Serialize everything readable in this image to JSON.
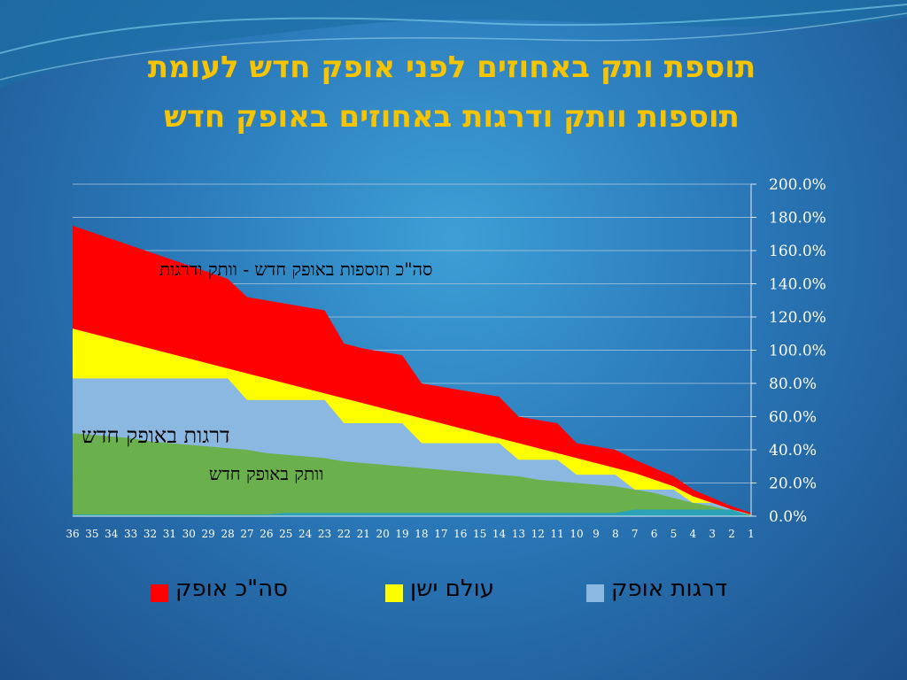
{
  "title_line1": "תוספת ותק באחוזים לפני אופק חדש  לעומת",
  "title_line2": "תוספות וותק ודרגות באחוזים באופק חדש",
  "annotations": {
    "total_label": "סה\"כ תוספות באופק חדש - וותק ודרגות",
    "ranks_label": "דרגות באופק חדש",
    "seniority_label": "וותק באופק חדש"
  },
  "legend": {
    "total": "סה\"כ אופק",
    "old_world": "עולם ישן",
    "ranks": "דרגות אופק"
  },
  "colors": {
    "red": "#ff0000",
    "yellow": "#ffff00",
    "lightblue": "#8bb8e0",
    "green": "#6ab04c",
    "teal": "#2aa3b8",
    "title": "#f6c400"
  },
  "chart_data": {
    "type": "area",
    "x_ticks": [
      "36",
      "35",
      "34",
      "33",
      "32",
      "31",
      "30",
      "29",
      "28",
      "27",
      "26",
      "25",
      "24",
      "23",
      "22",
      "21",
      "20",
      "19",
      "18",
      "17",
      "16",
      "15",
      "14",
      "13",
      "12",
      "11",
      "10",
      "9",
      "8",
      "7",
      "6",
      "5",
      "4",
      "3",
      "2",
      "1"
    ],
    "y_ticks": [
      "200.0%",
      "180.0%",
      "160.0%",
      "140.0%",
      "120.0%",
      "100.0%",
      "80.0%",
      "60.0%",
      "40.0%",
      "20.0%",
      "0.0%"
    ],
    "ylim": [
      0,
      200
    ],
    "grid": true,
    "series": [
      {
        "name": "סה\"כ אופק",
        "color": "#ff0000",
        "values": [
          175,
          171,
          167,
          163,
          159,
          155,
          151,
          147,
          143,
          132,
          130,
          128,
          126,
          124,
          104,
          101,
          99,
          97,
          80,
          78,
          76,
          74,
          72,
          60,
          58,
          56,
          44,
          42,
          40,
          34,
          29,
          24,
          16,
          11,
          6,
          2
        ]
      },
      {
        "name": "עולם ישן",
        "color": "#ffff00",
        "values": [
          113,
          110,
          107,
          104,
          101,
          98,
          95,
          92,
          89,
          86,
          83,
          80,
          77,
          74,
          71,
          68,
          65,
          62,
          59,
          56,
          53,
          50,
          47,
          44,
          41,
          38,
          35,
          32,
          29,
          26,
          22,
          18,
          12,
          8,
          4,
          1
        ]
      },
      {
        "name": "דרגות אופק",
        "color": "#8bb8e0",
        "values": [
          83,
          83,
          83,
          83,
          83,
          83,
          83,
          83,
          83,
          70,
          70,
          70,
          70,
          70,
          56,
          56,
          56,
          56,
          44,
          44,
          44,
          44,
          44,
          34,
          34,
          34,
          25,
          25,
          25,
          16,
          16,
          16,
          8,
          8,
          4,
          1
        ]
      },
      {
        "color": "#6ab04c",
        "values": [
          50,
          49,
          48,
          47,
          45,
          44,
          43,
          42,
          41,
          40,
          38,
          37,
          36,
          35,
          33,
          32,
          31,
          30,
          29,
          28,
          27,
          26,
          25,
          24,
          22,
          21,
          20,
          19,
          18,
          16,
          14,
          11,
          8,
          6,
          3,
          1
        ]
      },
      {
        "color": "#2aa3b8",
        "values": [
          1,
          1,
          1,
          1,
          1,
          1,
          1,
          1,
          1,
          1,
          1,
          2,
          2,
          2,
          2,
          2,
          2,
          2,
          2,
          2,
          2,
          2,
          2,
          2,
          2,
          2,
          2,
          2,
          2,
          4,
          4,
          4,
          4,
          4,
          4,
          0
        ]
      }
    ]
  }
}
